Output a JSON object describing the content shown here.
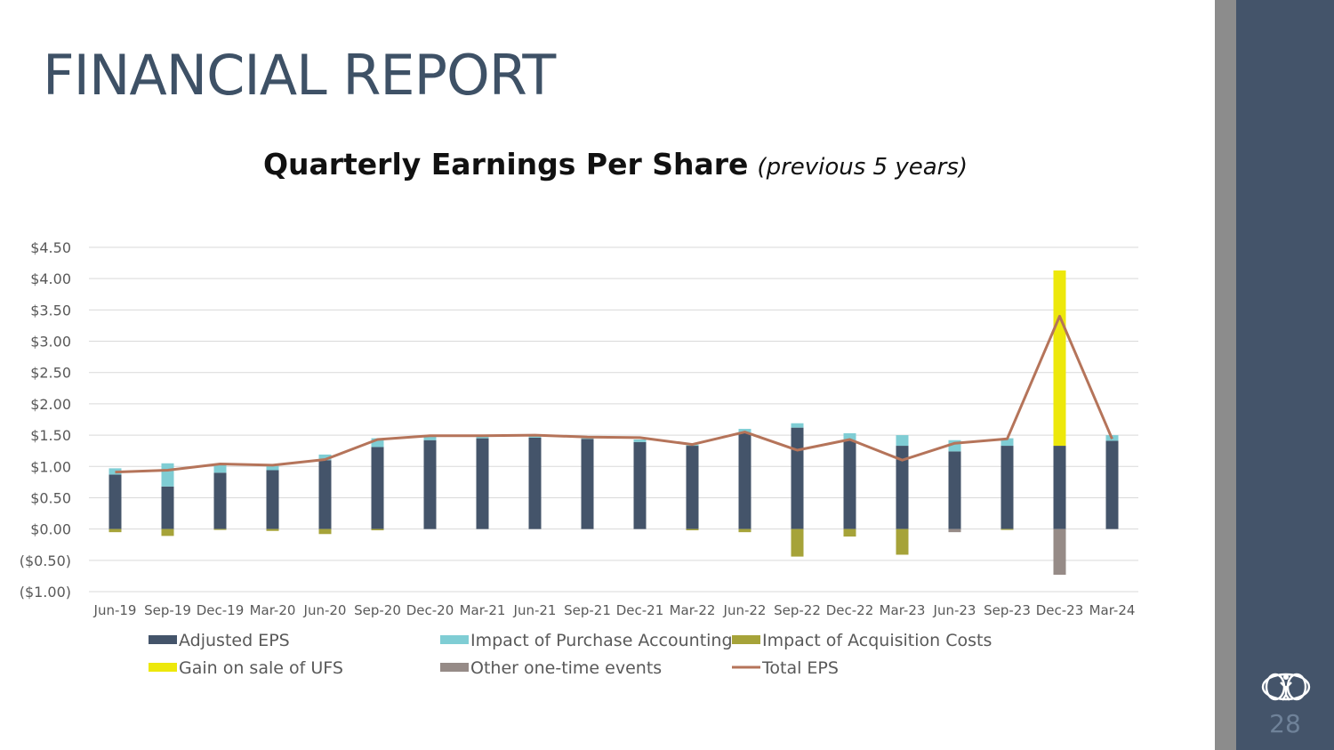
{
  "slide": {
    "title": "FINANCIAL REPORT",
    "page_number": "28",
    "logo_icon": "world-globe-figure-icon",
    "colors": {
      "title": "#3e5166",
      "side_panel": "#44546a",
      "side_strip": "#8c8c8c"
    }
  },
  "chart_data": {
    "type": "bar",
    "title": "Quarterly Earnings Per Share",
    "subtitle": "(previous 5 years)",
    "xlabel": "",
    "ylabel": "",
    "stacked": true,
    "ylim": [
      -1.0,
      4.5
    ],
    "y_ticks": [
      4.5,
      4.0,
      3.5,
      3.0,
      2.5,
      2.0,
      1.5,
      1.0,
      0.5,
      0.0,
      -0.5,
      -1.0
    ],
    "y_tick_labels": [
      "$4.50",
      "$4.00",
      "$3.50",
      "$3.00",
      "$2.50",
      "$2.00",
      "$1.50",
      "$1.00",
      "$0.50",
      "$0.00",
      "($0.50)",
      "($1.00)"
    ],
    "grid": true,
    "legend_position": "bottom",
    "categories": [
      "Jun-19",
      "Sep-19",
      "Dec-19",
      "Mar-20",
      "Jun-20",
      "Sep-20",
      "Dec-20",
      "Mar-21",
      "Jun-21",
      "Sep-21",
      "Dec-21",
      "Mar-22",
      "Jun-22",
      "Sep-22",
      "Dec-22",
      "Mar-23",
      "Jun-23",
      "Sep-23",
      "Dec-23",
      "Mar-24"
    ],
    "series": [
      {
        "name": "Adjusted EPS",
        "kind": "bar",
        "color": "#44546a",
        "values": [
          0.87,
          0.68,
          0.9,
          0.94,
          1.1,
          1.31,
          1.42,
          1.45,
          1.46,
          1.44,
          1.39,
          1.33,
          1.53,
          1.62,
          1.41,
          1.33,
          1.24,
          1.33,
          1.33,
          1.41
        ]
      },
      {
        "name": "Impact of Purchase Accounting",
        "kind": "bar",
        "color": "#7fcdd4",
        "values": [
          0.1,
          0.37,
          0.13,
          0.07,
          0.09,
          0.14,
          0.06,
          0.04,
          0.03,
          0.02,
          0.04,
          0.02,
          0.07,
          0.07,
          0.12,
          0.17,
          0.18,
          0.12,
          0.0,
          0.09
        ]
      },
      {
        "name": "Impact of Acquisition Costs",
        "kind": "bar",
        "color": "#a6a339",
        "values": [
          -0.05,
          -0.11,
          -0.01,
          -0.03,
          -0.08,
          -0.02,
          0.0,
          0.0,
          0.0,
          0.0,
          0.0,
          -0.02,
          -0.05,
          -0.44,
          -0.12,
          -0.41,
          0.0,
          -0.01,
          0.0,
          0.0
        ]
      },
      {
        "name": "Gain on sale of UFS",
        "kind": "bar",
        "color": "#ede80b",
        "values": [
          0,
          0,
          0,
          0,
          0,
          0,
          0,
          0,
          0,
          0,
          0,
          0,
          0,
          0,
          0,
          0,
          0,
          0,
          2.8,
          0
        ]
      },
      {
        "name": "Other one-time events",
        "kind": "bar",
        "color": "#968b87",
        "values": [
          0,
          0,
          0,
          0,
          0,
          0,
          0,
          0,
          0,
          0,
          0,
          0,
          0,
          0,
          0,
          0,
          -0.05,
          0,
          -0.73,
          0
        ]
      },
      {
        "name": "Total EPS",
        "kind": "line",
        "color": "#b5745a",
        "values": [
          0.91,
          0.94,
          1.04,
          1.02,
          1.11,
          1.43,
          1.49,
          1.49,
          1.5,
          1.47,
          1.46,
          1.35,
          1.55,
          1.26,
          1.43,
          1.1,
          1.37,
          1.44,
          3.4,
          1.44
        ]
      }
    ]
  }
}
